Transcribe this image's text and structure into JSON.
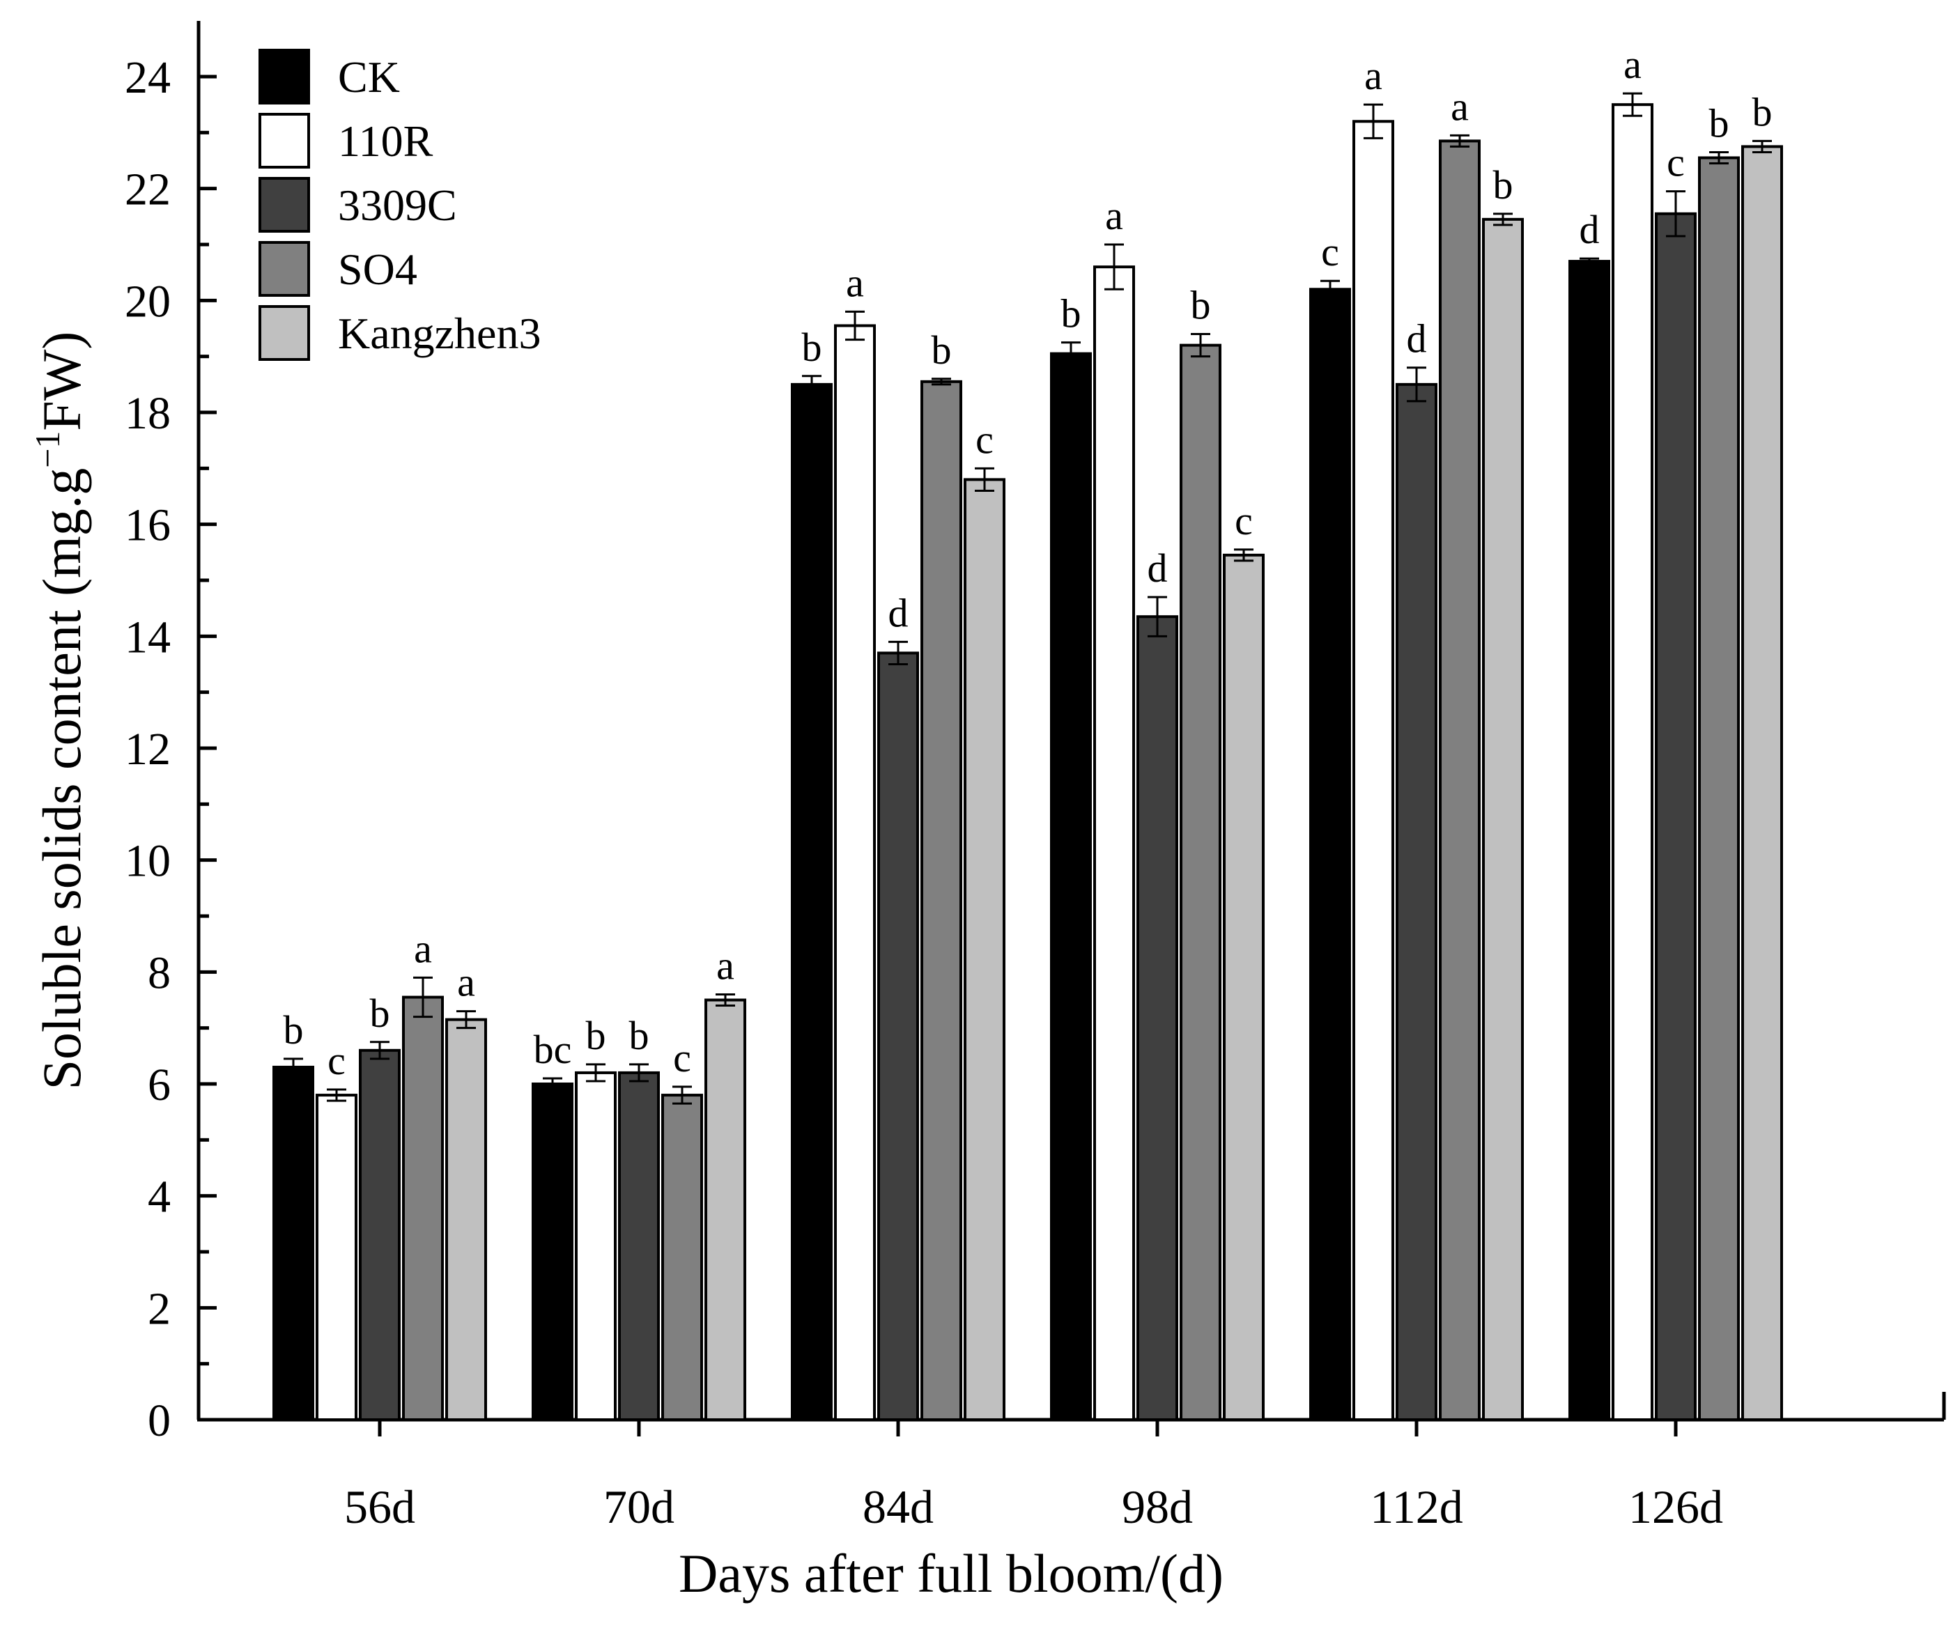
{
  "chart_data": {
    "type": "bar",
    "title": "",
    "xlabel": "Days after full bloom/(d)",
    "ylabel": "Soluble solids content (mg.g",
    "ylabel_sup": "−1",
    "ylabel_tail": "FW)",
    "ylim": [
      0,
      24
    ],
    "yticks": [
      "0",
      "2",
      "4",
      "6",
      "8",
      "10",
      "12",
      "14",
      "16",
      "18",
      "20",
      "22",
      "24"
    ],
    "categories": [
      "56d",
      "70d",
      "84d",
      "98d",
      "112d",
      "126d"
    ],
    "legend_position": "top-left",
    "series": [
      {
        "name": "CK",
        "color": "#000000",
        "values": [
          6.3,
          6.0,
          18.5,
          19.05,
          20.2,
          20.7
        ],
        "errors": [
          0.15,
          0.1,
          0.15,
          0.2,
          0.15,
          0.05
        ],
        "letters": [
          "b",
          "bc",
          "b",
          "b",
          "c",
          "d"
        ]
      },
      {
        "name": "110R",
        "color": "#ffffff",
        "values": [
          5.8,
          6.2,
          19.55,
          20.6,
          23.2,
          23.5
        ],
        "errors": [
          0.1,
          0.15,
          0.25,
          0.4,
          0.3,
          0.2
        ],
        "letters": [
          "c",
          "b",
          "a",
          "a",
          "a",
          "a"
        ]
      },
      {
        "name": "3309C",
        "color": "#404040",
        "values": [
          6.6,
          6.2,
          13.7,
          14.35,
          18.5,
          21.55
        ],
        "errors": [
          0.15,
          0.15,
          0.2,
          0.35,
          0.3,
          0.4
        ],
        "letters": [
          "b",
          "b",
          "d",
          "d",
          "d",
          "c"
        ]
      },
      {
        "name": "SO4",
        "color": "#808080",
        "values": [
          7.55,
          5.8,
          18.55,
          19.2,
          22.85,
          22.55
        ],
        "errors": [
          0.35,
          0.15,
          0.05,
          0.2,
          0.1,
          0.1
        ],
        "letters": [
          "a",
          "c",
          "b",
          "b",
          "a",
          "b"
        ]
      },
      {
        "name": "Kangzhen3",
        "color": "#c0c0c0",
        "values": [
          7.15,
          7.5,
          16.8,
          15.45,
          21.45,
          22.75
        ],
        "errors": [
          0.15,
          0.1,
          0.2,
          0.1,
          0.1,
          0.1
        ],
        "letters": [
          "a",
          "a",
          "c",
          "c",
          "b",
          "b"
        ]
      }
    ]
  }
}
